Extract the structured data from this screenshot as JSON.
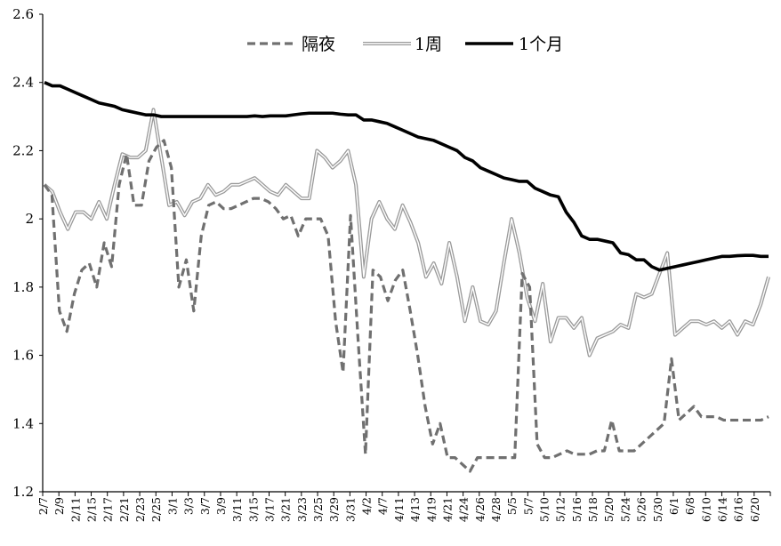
{
  "chart_data": {
    "type": "line",
    "ylim": [
      1.2,
      2.6
    ],
    "y_ticks": [
      "1.2",
      "1.4",
      "1.6",
      "1.8",
      "2",
      "2.2",
      "2.4",
      "2.6"
    ],
    "x_tick_labels": [
      "2/7",
      "2/9",
      "2/11",
      "2/15",
      "2/17",
      "2/21",
      "2/23",
      "2/25",
      "3/1",
      "3/3",
      "3/7",
      "3/9",
      "3/11",
      "3/15",
      "3/17",
      "3/21",
      "3/23",
      "3/25",
      "3/29",
      "3/31",
      "4/2",
      "4/7",
      "4/11",
      "4/13",
      "4/19",
      "4/21",
      "4/24",
      "4/26",
      "4/28",
      "5/5",
      "5/7",
      "5/10",
      "5/12",
      "5/16",
      "5/18",
      "5/20",
      "5/24",
      "5/26",
      "5/30",
      "6/1",
      "6/8",
      "6/10",
      "6/14",
      "6/16",
      "6/20"
    ],
    "legend_position": "top-center",
    "grid": false,
    "series": [
      {
        "name": "隔夜",
        "color": "#707070",
        "style": "dashed",
        "values": [
          2.1,
          2.07,
          1.73,
          1.67,
          1.78,
          1.85,
          1.87,
          1.8,
          1.93,
          1.86,
          2.1,
          2.19,
          2.04,
          2.04,
          2.17,
          2.21,
          2.23,
          2.15,
          1.8,
          1.88,
          1.73,
          1.95,
          2.04,
          2.05,
          2.03,
          2.03,
          2.04,
          2.05,
          2.06,
          2.06,
          2.05,
          2.03,
          2.0,
          2.01,
          1.95,
          2.0,
          2.0,
          2.0,
          1.95,
          1.7,
          1.55,
          2.01,
          1.65,
          1.31,
          1.85,
          1.83,
          1.76,
          1.82,
          1.85,
          1.73,
          1.6,
          1.45,
          1.34,
          1.4,
          1.3,
          1.3,
          1.28,
          1.26,
          1.3,
          1.3,
          1.3,
          1.3,
          1.3,
          1.3,
          1.84,
          1.8,
          1.34,
          1.3,
          1.3,
          1.31,
          1.32,
          1.31,
          1.31,
          1.31,
          1.32,
          1.32,
          1.41,
          1.32,
          1.32,
          1.32,
          1.34,
          1.36,
          1.38,
          1.4,
          1.59,
          1.41,
          1.43,
          1.45,
          1.42,
          1.42,
          1.42,
          1.41,
          1.41,
          1.41,
          1.41,
          1.41,
          1.41,
          1.42
        ]
      },
      {
        "name": "1周",
        "color": "#9a9a9a",
        "style": "double-line",
        "values": [
          2.1,
          2.08,
          2.02,
          1.97,
          2.02,
          2.02,
          2.0,
          2.05,
          2.0,
          2.1,
          2.19,
          2.18,
          2.18,
          2.2,
          2.32,
          2.18,
          2.04,
          2.05,
          2.01,
          2.05,
          2.06,
          2.1,
          2.07,
          2.08,
          2.1,
          2.1,
          2.11,
          2.12,
          2.1,
          2.08,
          2.07,
          2.1,
          2.08,
          2.06,
          2.06,
          2.2,
          2.18,
          2.15,
          2.17,
          2.2,
          2.1,
          1.83,
          2.0,
          2.05,
          2.0,
          1.97,
          2.04,
          1.99,
          1.93,
          1.83,
          1.87,
          1.81,
          1.93,
          1.83,
          1.7,
          1.8,
          1.7,
          1.69,
          1.73,
          1.87,
          2.0,
          1.9,
          1.77,
          1.7,
          1.81,
          1.64,
          1.71,
          1.71,
          1.68,
          1.71,
          1.6,
          1.65,
          1.66,
          1.67,
          1.69,
          1.68,
          1.78,
          1.77,
          1.78,
          1.84,
          1.9,
          1.66,
          1.68,
          1.7,
          1.7,
          1.69,
          1.7,
          1.68,
          1.7,
          1.66,
          1.7,
          1.69,
          1.75,
          1.83
        ]
      },
      {
        "name": "1个月",
        "color": "#000000",
        "style": "solid",
        "values": [
          2.4,
          2.39,
          2.39,
          2.38,
          2.37,
          2.36,
          2.35,
          2.34,
          2.335,
          2.33,
          2.32,
          2.315,
          2.31,
          2.305,
          2.305,
          2.3,
          2.3,
          2.3,
          2.3,
          2.3,
          2.3,
          2.3,
          2.3,
          2.3,
          2.3,
          2.3,
          2.3,
          2.302,
          2.3,
          2.302,
          2.302,
          2.302,
          2.305,
          2.308,
          2.31,
          2.31,
          2.31,
          2.31,
          2.307,
          2.305,
          2.305,
          2.29,
          2.29,
          2.285,
          2.28,
          2.27,
          2.26,
          2.25,
          2.24,
          2.235,
          2.23,
          2.22,
          2.21,
          2.2,
          2.18,
          2.17,
          2.15,
          2.14,
          2.13,
          2.12,
          2.115,
          2.11,
          2.11,
          2.09,
          2.08,
          2.07,
          2.065,
          2.02,
          1.99,
          1.95,
          1.94,
          1.94,
          1.935,
          1.93,
          1.9,
          1.895,
          1.88,
          1.88,
          1.86,
          1.85,
          1.855,
          1.86,
          1.865,
          1.87,
          1.875,
          1.88,
          1.885,
          1.89,
          1.89,
          1.892,
          1.893,
          1.893,
          1.89,
          1.89
        ]
      }
    ]
  }
}
